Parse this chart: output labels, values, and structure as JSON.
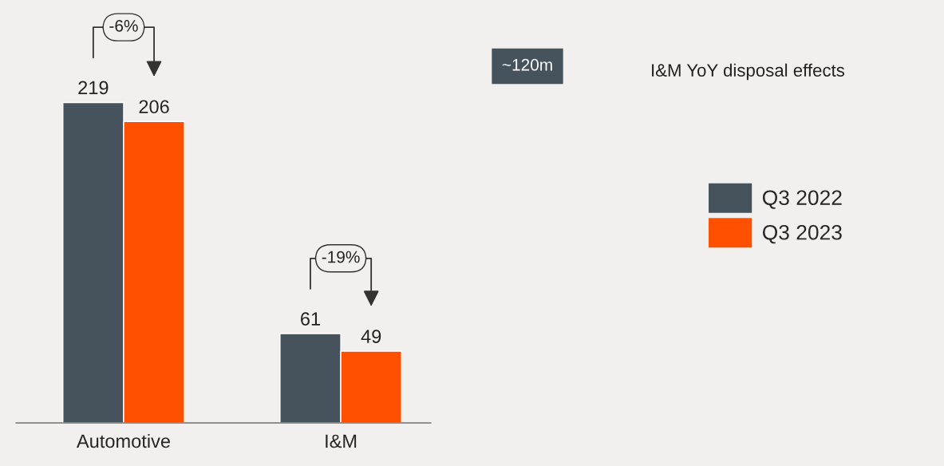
{
  "chart_data": {
    "type": "bar",
    "categories": [
      "Automotive",
      "I&M"
    ],
    "series": [
      {
        "name": "Q3 2022",
        "color": "#46525c",
        "values": [
          219,
          61
        ]
      },
      {
        "name": "Q3 2023",
        "color": "#ff5000",
        "values": [
          206,
          49
        ]
      }
    ],
    "data_labels": true,
    "legend": "right",
    "grid": false,
    "annotations": [
      "-6%",
      "-19%",
      "~120m",
      "I&M YoY disposal effects"
    ]
  }
}
